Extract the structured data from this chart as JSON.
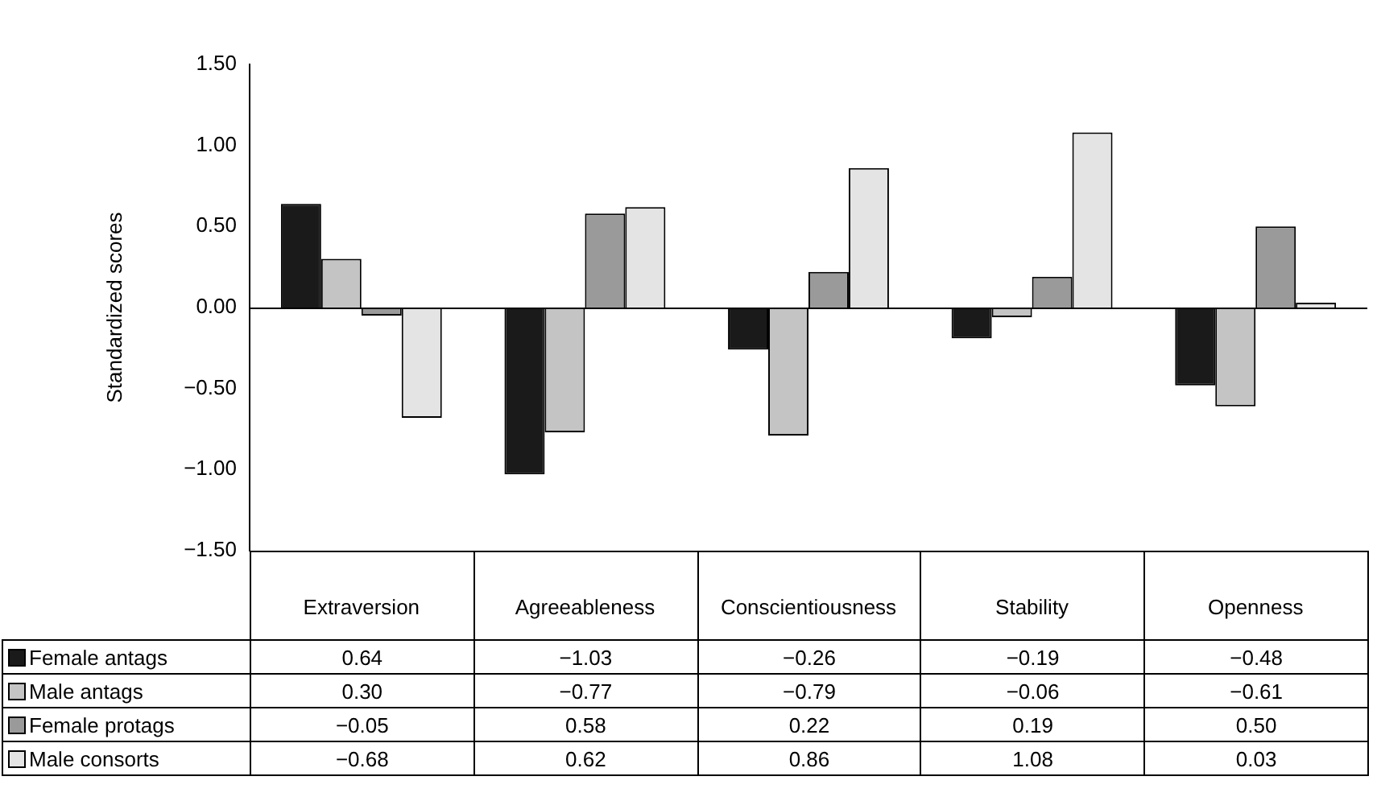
{
  "chart_data": {
    "type": "bar",
    "ylabel": "Standardized scores",
    "categories": [
      "Extraversion",
      "Agreeableness",
      "Conscientiousness",
      "Stability",
      "Openness"
    ],
    "series": [
      {
        "name": "Female antags",
        "color": "#1a1a1a",
        "values": [
          0.64,
          -1.03,
          -0.26,
          -0.19,
          -0.48
        ],
        "value_labels": [
          "0.64",
          "−1.03",
          "−0.26",
          "−0.19",
          "−0.48"
        ]
      },
      {
        "name": "Male antags",
        "color": "#c4c4c4",
        "values": [
          0.3,
          -0.77,
          -0.79,
          -0.06,
          -0.61
        ],
        "value_labels": [
          "0.30",
          "−0.77",
          "−0.79",
          "−0.06",
          "−0.61"
        ]
      },
      {
        "name": "Female protags",
        "color": "#9a9a9a",
        "values": [
          -0.05,
          0.58,
          0.22,
          0.19,
          0.5
        ],
        "value_labels": [
          "−0.05",
          "0.58",
          "0.22",
          "0.19",
          "0.50"
        ]
      },
      {
        "name": "Male consorts",
        "color": "#e4e4e4",
        "values": [
          -0.68,
          0.62,
          0.86,
          1.08,
          0.03
        ],
        "value_labels": [
          "−0.68",
          "0.62",
          "0.86",
          "1.08",
          "0.03"
        ]
      }
    ],
    "ylim": [
      -1.5,
      1.5
    ],
    "yticks": [
      {
        "value": -1.5,
        "label": "−1.50"
      },
      {
        "value": -1,
        "label": "−1.00"
      },
      {
        "value": -0.5,
        "label": "−0.50"
      },
      {
        "value": 0,
        "label": "0.00"
      },
      {
        "value": 0.5,
        "label": "0.50"
      },
      {
        "value": 1,
        "label": "1.00"
      },
      {
        "value": 1.5,
        "label": "1.50"
      }
    ],
    "ref_lines": [
      {
        "axis": "y",
        "value": 0,
        "color": "#000000"
      }
    ],
    "legend": "bottom left"
  }
}
